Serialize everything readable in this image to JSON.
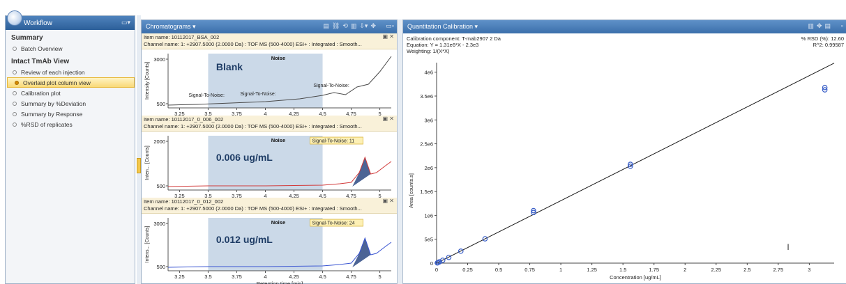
{
  "workflow": {
    "title": "Workflow",
    "sections": [
      {
        "heading": "Summary",
        "items": [
          "Batch Overview"
        ]
      },
      {
        "heading": "Intact TmAb View",
        "items": [
          "Review of each injection",
          "Overlaid plot column view",
          "Calibration plot",
          "Summary by %Deviation",
          "Summary by Response",
          "%RSD of replicates"
        ]
      }
    ],
    "active_item": "Overlaid plot column view"
  },
  "chromatograms": {
    "title": "Chromatograms ▾",
    "x_axis_label": "Retention time [min]",
    "plots": [
      {
        "item_name": "Item name: 10112017_BSA_002",
        "channel": "Channel name: 1: +2907.5000 (2.0000 Da) : TOF MS (500-4000) ESI+ : Integrated : Smooth...",
        "ylabel": "Intensity [Counts]",
        "overlay_label": "Blank",
        "noise_label": "Noise",
        "annotations": [
          "Signal-To-Noise:",
          "Signal-To-Noise:",
          "Signal-To-Noise:"
        ],
        "y_ticks": [
          "3000",
          "500"
        ],
        "line_color": "#4a4a4a"
      },
      {
        "item_name": "Item name: 10112017_0_006_002",
        "channel": "Channel name: 1: +2907.5000 (2.0000 Da) : TOF MS (500-4000) ESI+ : Integrated : Smooth...",
        "ylabel": "Inten... [Counts]",
        "overlay_label": "0.006 ug/mL",
        "noise_label": "Noise",
        "sn_label": "Signal-To-Noise: 11",
        "y_ticks": [
          "2000",
          "500"
        ],
        "line_color": "#d23a3a"
      },
      {
        "item_name": "Item name: 10112017_0_012_002",
        "channel": "Channel name: 1: +2907.5000 (2.0000 Da) : TOF MS (500-4000) ESI+ : Integrated : Smooth...",
        "ylabel": "Intens... [Counts]",
        "overlay_label": "0.012 ug/mL",
        "noise_label": "Noise",
        "sn_label": "Signal-To-Noise: 24",
        "y_ticks": [
          "3000",
          "500"
        ],
        "line_color": "#3a55d2"
      }
    ],
    "x_ticks": [
      "3.25",
      "3.5",
      "3.75",
      "4",
      "4.25",
      "4.5",
      "4.75",
      "5"
    ]
  },
  "quantitation": {
    "title": "Quantitation Calibration ▾",
    "component": "Calibration component: T-mab2907 2 Da",
    "equation": "Equation: Y = 1.31e6*X - 2.3e3",
    "weighting": "Weighting: 1/(X*X)",
    "rsd": "% RSD (%): 12.60",
    "r2": "R^2: 0.99587"
  },
  "chart_data": {
    "type": "scatter",
    "title": "",
    "xlabel": "Concentration [ug/mL]",
    "ylabel": "Area [counts.s]",
    "xlim": [
      0,
      3.2
    ],
    "ylim": [
      0,
      4200000
    ],
    "x_ticks": [
      0,
      0.25,
      0.5,
      0.75,
      1,
      1.25,
      1.5,
      1.75,
      2,
      2.25,
      2.5,
      2.75,
      3
    ],
    "x_tick_labels": [
      "0",
      "0.25",
      "0.5",
      "0.75",
      "1",
      "1.25",
      "1.5",
      "1.75",
      "2",
      "2.25",
      "2.5",
      "2.75",
      "3"
    ],
    "y_ticks": [
      0,
      500000,
      1000000,
      1500000,
      2000000,
      2500000,
      3000000,
      3500000,
      4000000
    ],
    "y_tick_labels": [
      "0",
      "5e5",
      "1e6",
      "1.5e6",
      "2e6",
      "2.5e6",
      "3e6",
      "3.5e6",
      "4e6"
    ],
    "points": [
      {
        "x": 0.006,
        "y": 5000
      },
      {
        "x": 0.012,
        "y": 14000
      },
      {
        "x": 0.024,
        "y": 28000
      },
      {
        "x": 0.049,
        "y": 60000
      },
      {
        "x": 0.098,
        "y": 120000
      },
      {
        "x": 0.195,
        "y": 250000
      },
      {
        "x": 0.39,
        "y": 510000
      },
      {
        "x": 0.78,
        "y": 1060000
      },
      {
        "x": 0.78,
        "y": 1100000
      },
      {
        "x": 1.56,
        "y": 2030000
      },
      {
        "x": 1.56,
        "y": 2070000
      },
      {
        "x": 3.125,
        "y": 3630000
      },
      {
        "x": 3.125,
        "y": 3680000
      }
    ],
    "fit_line": {
      "slope": 1310000,
      "intercept": -2300
    },
    "point_color": "#3a5fc8",
    "line_color": "#1a1a1a",
    "grid": false
  }
}
